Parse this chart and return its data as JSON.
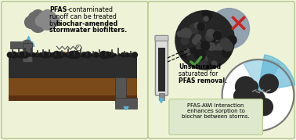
{
  "colors": {
    "bg": "#eef3e0",
    "panel_bg": "#eef3d8",
    "border_color": "#b8cc90",
    "cloud": "#888888",
    "pipe": "#555555",
    "soil_top": "#2d2d2d",
    "soil_bottom": "#7a4a1a",
    "water_blue": "#5ab4d6",
    "check_green": "#4a9a3a",
    "cross_red": "#cc2222",
    "callout_bg": "#dde8cc",
    "biochar_dark": "#252525",
    "sat_blue": "#8899aa"
  },
  "left_text1_bold": "PFAS",
  "left_text1_rest": "-contaminated",
  "left_text2": "runoff can be treated",
  "left_text3_pre": "by ",
  "left_text3_bold": "biochar-amended",
  "left_text4_bold": "stormwater biofilters.",
  "unsaturated_bold": "Unsaturated",
  "unsaturated_rest": " >",
  "unsaturated2": "saturated for",
  "unsaturated3_bold": "PFAS removal.",
  "callout_text": "PFAS-AWI interaction\nenhances sorption to\nbiochar between storms."
}
